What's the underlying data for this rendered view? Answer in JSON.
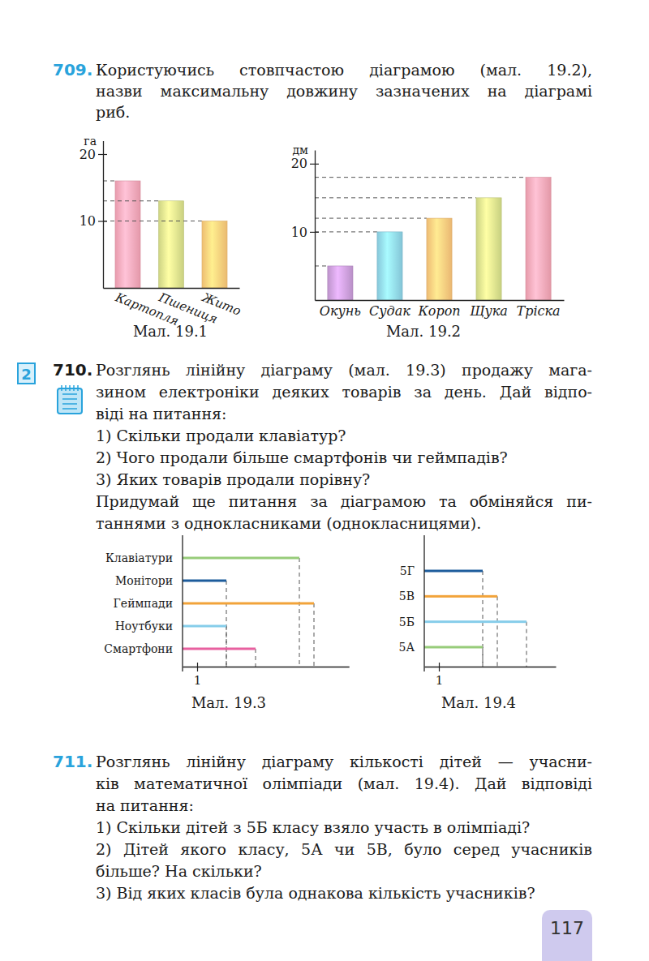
{
  "exercises": [
    {
      "number": "709.",
      "paragraphs": [
        [
          "Користуючись стовпчастою діаграмою (мал. 19.2),",
          "назви максимальну довжину зазначених на діаграмі",
          "риб."
        ]
      ]
    },
    {
      "number": "710.",
      "level": "2",
      "paragraphs": [
        [
          "Розглянь лінійну діаграму (мал. 19.3) продажу мага-",
          "зином електроніки деяких товарів за день. Дай відпо-",
          "віді на питання:"
        ],
        [
          "1) Скільки продали клавіатур?"
        ],
        [
          "2) Чого продали більше смартфонів чи геймпадів?"
        ],
        [
          "3) Яких товарів продали порівну?"
        ],
        [
          "Придумай ще питання за діаграмою та обміняйся пи-",
          "таннями з однокласниками (однокласницями)."
        ]
      ]
    },
    {
      "number": "711.",
      "paragraphs": [
        [
          "Розглянь лінійну діаграму кількості дітей — учасни-",
          "ків математичної олімпіади (мал. 19.4). Дай відповіді",
          "на питання:"
        ],
        [
          "1) Скільки дітей з 5Б класу взяло участь в олімпіаді?"
        ],
        [
          "2) Дітей якого класу, 5А чи 5В, було серед учасників",
          "більше? На скільки?"
        ],
        [
          "3) Від яких класів була однакова кількість учасників?"
        ]
      ]
    }
  ],
  "chart_data": [
    {
      "type": "bar",
      "title": "Мал. 19.1",
      "ylabel": "га",
      "categories": [
        "Картопля",
        "Пшениця",
        "Жито"
      ],
      "values": [
        16,
        13,
        10
      ],
      "colors": [
        "#f5a3b5",
        "#d8df8a",
        "#fbc878"
      ],
      "ylim": [
        0,
        22
      ],
      "yticks": [
        10,
        20
      ]
    },
    {
      "type": "bar",
      "title": "Мал. 19.2",
      "ylabel": "дм",
      "categories": [
        "Окунь",
        "Судак",
        "Короп",
        "Щука",
        "Тріска"
      ],
      "values": [
        5,
        10,
        12,
        15,
        18
      ],
      "colors": [
        "#c79bd6",
        "#8dd2e6",
        "#fbc57a",
        "#d6df8a",
        "#f4a3b3"
      ],
      "ylim": [
        0,
        22
      ],
      "yticks": [
        10,
        20
      ]
    },
    {
      "type": "bar",
      "orientation": "horizontal",
      "title": "Мал. 19.3",
      "categories": [
        "Клавіатури",
        "Монітори",
        "Геймпади",
        "Ноутбуки",
        "Смартфони"
      ],
      "values": [
        8,
        3,
        9,
        3,
        5
      ],
      "colors": [
        "#97cc7a",
        "#1d5c9c",
        "#f2a33a",
        "#86cdea",
        "#e8609f"
      ],
      "xlim": [
        0,
        11.4
      ],
      "xticks": [
        1
      ]
    },
    {
      "type": "bar",
      "orientation": "horizontal",
      "title": "Мал. 19.4",
      "categories": [
        "5Г",
        "5В",
        "5Б",
        "5А"
      ],
      "values": [
        4,
        5,
        7,
        4
      ],
      "colors": [
        "#1d5c9c",
        "#f2a33a",
        "#86cdea",
        "#97cc7a"
      ],
      "xlim": [
        0,
        9
      ],
      "xticks": [
        1
      ]
    }
  ],
  "page_number": "117"
}
